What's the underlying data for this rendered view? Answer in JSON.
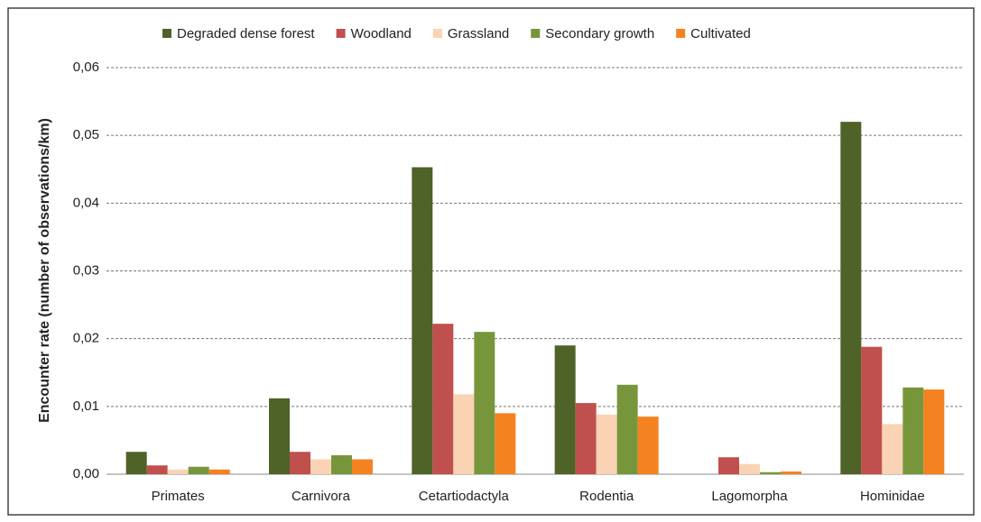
{
  "chart_data": {
    "type": "bar",
    "y_label": "Encounter rate (number of observations/km)",
    "categories": [
      "Primates",
      "Carnivora",
      "Cetartiodactyla",
      "Rodentia",
      "Lagomorpha",
      "Hominidae"
    ],
    "series": [
      {
        "name": "Degraded dense forest",
        "color": "#4f6228",
        "values": [
          0.0033,
          0.0112,
          0.0453,
          0.019,
          0,
          0.052
        ]
      },
      {
        "name": "Woodland",
        "color": "#c0504d",
        "values": [
          0.0013,
          0.0033,
          0.0222,
          0.0105,
          0.0025,
          0.0188
        ]
      },
      {
        "name": "Grassland",
        "color": "#fad3b4",
        "values": [
          0.0007,
          0.0022,
          0.0118,
          0.0088,
          0.0015,
          0.0074
        ]
      },
      {
        "name": "Secondary growth",
        "color": "#77963c",
        "values": [
          0.0011,
          0.0028,
          0.021,
          0.0132,
          0.0003,
          0.0128
        ]
      },
      {
        "name": "Cultivated",
        "color": "#f58220",
        "values": [
          0.0007,
          0.0022,
          0.009,
          0.0085,
          0.0004,
          0.0125
        ]
      }
    ],
    "ylim": [
      0,
      0.06
    ],
    "yticks": [
      {
        "value": 0,
        "label": "0,00"
      },
      {
        "value": 0.01,
        "label": "0,01"
      },
      {
        "value": 0.02,
        "label": "0,02"
      },
      {
        "value": 0.03,
        "label": "0,03"
      },
      {
        "value": 0.04,
        "label": "0,04"
      },
      {
        "value": 0.05,
        "label": "0,05"
      },
      {
        "value": 0.06,
        "label": "0,06"
      }
    ],
    "grid": true
  }
}
